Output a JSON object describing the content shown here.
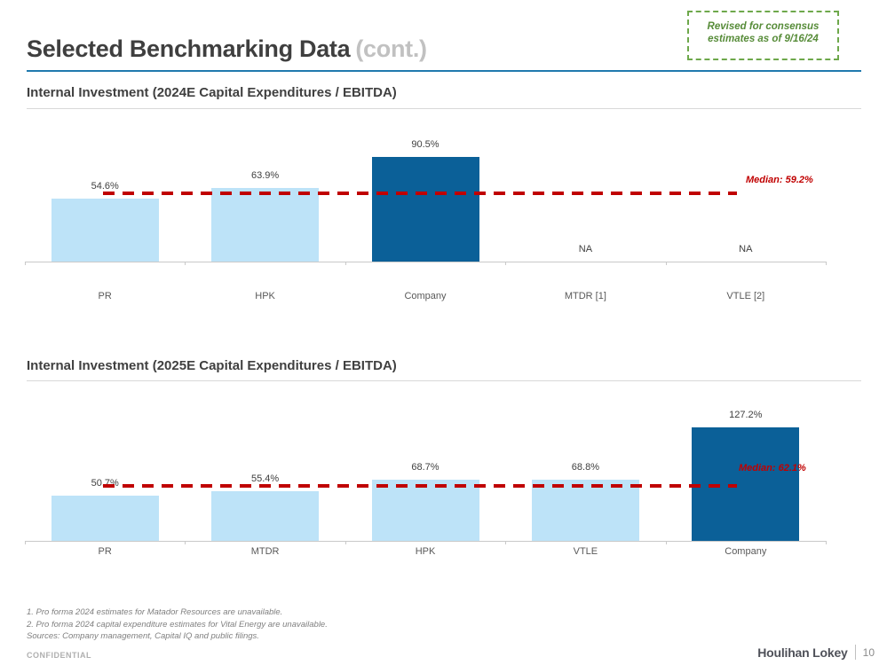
{
  "header": {
    "title": "Selected Benchmarking Data",
    "title_suffix": "(cont.)",
    "note": [
      "Revised for consensus",
      "estimates as of 9/16/24"
    ]
  },
  "chart_data": [
    {
      "type": "bar",
      "title": "Internal Investment (2024E Capital Expenditures / EBITDA)",
      "categories": [
        "PR",
        "HPK",
        "Company",
        "MTDR [1]",
        "VTLE [2]"
      ],
      "values": [
        54.6,
        63.9,
        90.5,
        null,
        null
      ],
      "value_labels": [
        "54.6%",
        "63.9%",
        "90.5%",
        "NA",
        "NA"
      ],
      "highlight_index": 2,
      "median": 59.2,
      "median_label": "Median: 59.2%",
      "ylim": [
        0,
        110
      ],
      "grid": false,
      "legend": "none"
    },
    {
      "type": "bar",
      "title": "Internal Investment (2025E Capital Expenditures / EBITDA)",
      "categories": [
        "PR",
        "MTDR",
        "HPK",
        "VTLE",
        "Company"
      ],
      "values": [
        50.7,
        55.4,
        68.7,
        68.8,
        127.2
      ],
      "value_labels": [
        "50.7%",
        "55.4%",
        "68.7%",
        "68.8%",
        "127.2%"
      ],
      "highlight_index": 4,
      "median": 62.1,
      "median_label": "Median: 62.1%",
      "ylim": [
        0,
        140
      ],
      "grid": false,
      "legend": "none"
    }
  ],
  "footnotes": [
    "1. Pro forma 2024 estimates for Matador Resources are unavailable.",
    "2. Pro forma 2024 capital expenditure estimates for Vital Energy are unavailable.",
    "Sources: Company management, Capital IQ and public filings."
  ],
  "footer": {
    "confidential": "CONFIDENTIAL",
    "brand": "Houlihan Lokey",
    "page_number": "10"
  },
  "colors": {
    "bar_light_blue": "#bde3f8",
    "bar_dark_blue": "#0b6098",
    "median_red": "#c00000",
    "axis_gray": "#c9c9c9",
    "title_rule_blue": "#2079ae",
    "note_green": "#578c39",
    "value_label": "#404040",
    "category_label": "#595959"
  }
}
